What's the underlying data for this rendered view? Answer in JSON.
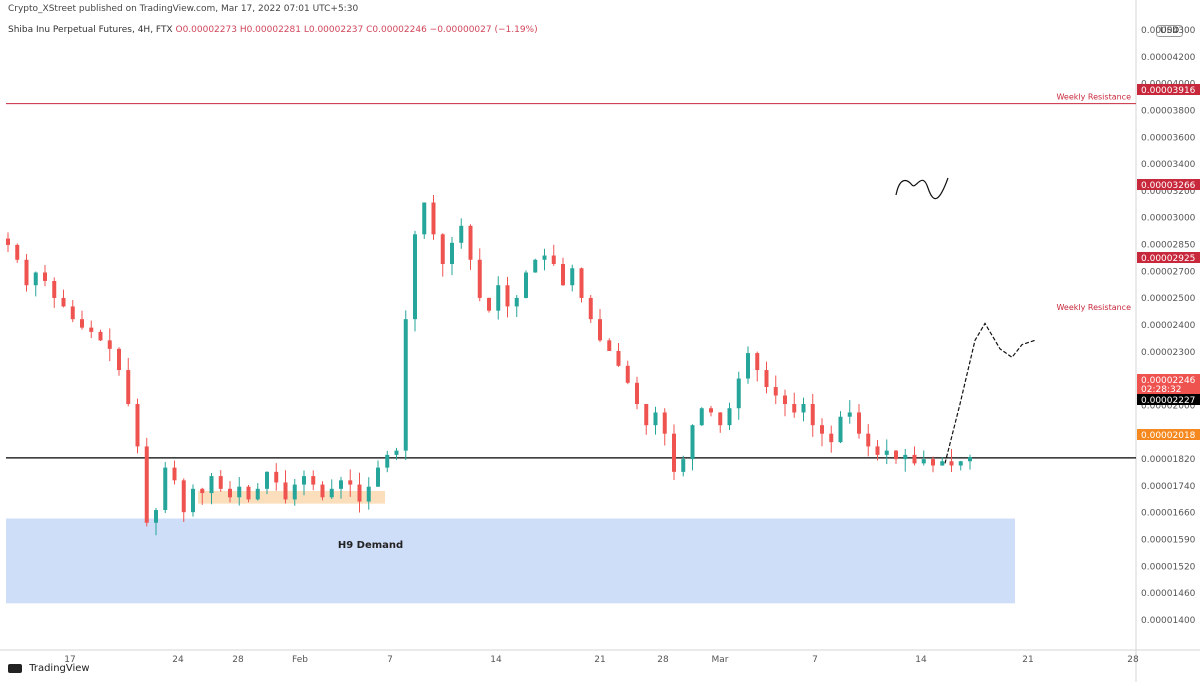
{
  "header": {
    "published_text": "Crypto_XStreet published on TradingView.com, Mar 17, 2022 07:01 UTC+5:30",
    "symbol": "Shiba Inu Perpetual Futures, 4H, FTX",
    "ohlc": "O0.00002273 H0.00002281 L0.00002237 C0.00002246 −0.00000027 (−1.19%)",
    "currency": "USD"
  },
  "footer": {
    "logo_text": "TradingView"
  },
  "colors": {
    "up": "#26a69a",
    "down": "#ef5350",
    "resistance": "#c8283c",
    "demand_zone": "#c9d9f7",
    "support_box": "#fbdcb5",
    "orange_label": "#f5891f",
    "black_label": "#000000"
  },
  "chart_data": {
    "type": "candlestick",
    "x_axis_ticks": [
      "17",
      "24",
      "28",
      "Feb",
      "7",
      "14",
      "21",
      "28",
      "Mar",
      "7",
      "14",
      "21",
      "28"
    ],
    "y_axis_ticks": [
      "0.00004300",
      "0.00004200",
      "0.00004000",
      "0.00003800",
      "0.00003600",
      "0.00003400",
      "0.00003200",
      "0.00003000",
      "0.00002850",
      "0.00002700",
      "0.00002500",
      "0.00002400",
      "0.00002300",
      "0.00002100",
      "0.00002000",
      "0.00001900",
      "0.00001820",
      "0.00001740",
      "0.00001660",
      "0.00001590",
      "0.00001520",
      "0.00001460",
      "0.00001400"
    ],
    "ylim": [
      1.34e-05,
      4.32e-05
    ],
    "price_labels": [
      {
        "text": "0.00003916",
        "kind": "resistance"
      },
      {
        "text": "0.00003266",
        "kind": "resistance"
      },
      {
        "text": "0.00002925",
        "kind": "resistance"
      },
      {
        "text": "0.00002246",
        "kind": "current",
        "countdown": "02:28:32"
      },
      {
        "text": "0.00002227",
        "kind": "black"
      },
      {
        "text": "0.00002018",
        "kind": "orange"
      }
    ],
    "levels": [
      {
        "label": "Weekly Resistance",
        "price": 3.916e-05
      },
      {
        "label": "Weekly Resistance",
        "price": 2.925e-05
      },
      {
        "label": "",
        "price": 2.246e-05
      }
    ],
    "zones": [
      {
        "label": "H9 Demand",
        "from": 1.56e-05,
        "to": 1.96e-05
      },
      {
        "label": "",
        "from": 2.03e-05,
        "to": 2.09e-05
      }
    ],
    "price_path": [
      3.25e-05,
      3.18e-05,
      3.06e-05,
      3.12e-05,
      3.08e-05,
      3e-05,
      2.96e-05,
      2.9e-05,
      2.86e-05,
      2.84e-05,
      2.8e-05,
      2.76e-05,
      2.66e-05,
      2.5e-05,
      2.3e-05,
      1.94e-05,
      2e-05,
      2.2e-05,
      2.14e-05,
      1.99e-05,
      2.1e-05,
      2.08e-05,
      2.16e-05,
      2.1e-05,
      2.06e-05,
      2.11e-05,
      2.05e-05,
      2.1e-05,
      2.18e-05,
      2.13e-05,
      2.05e-05,
      2.12e-05,
      2.16e-05,
      2.12e-05,
      2.06e-05,
      2.1e-05,
      2.14e-05,
      2.12e-05,
      2.04e-05,
      2.11e-05,
      2.2e-05,
      2.26e-05,
      2.28e-05,
      2.9e-05,
      3.3e-05,
      3.45e-05,
      3.3e-05,
      3.16e-05,
      3.26e-05,
      3.34e-05,
      3.18e-05,
      3e-05,
      2.94e-05,
      3.06e-05,
      2.96e-05,
      3e-05,
      3.12e-05,
      3.18e-05,
      3.2e-05,
      3.16e-05,
      3.06e-05,
      3.14e-05,
      3e-05,
      2.9e-05,
      2.8e-05,
      2.75e-05,
      2.68e-05,
      2.6e-05,
      2.5e-05,
      2.4e-05,
      2.46e-05,
      2.36e-05,
      2.18e-05,
      2.24e-05,
      2.4e-05,
      2.48e-05,
      2.46e-05,
      2.4e-05,
      2.48e-05,
      2.62e-05,
      2.74e-05,
      2.66e-05,
      2.58e-05,
      2.54e-05,
      2.5e-05,
      2.46e-05,
      2.5e-05,
      2.4e-05,
      2.36e-05,
      2.32e-05,
      2.44e-05,
      2.46e-05,
      2.36e-05,
      2.3e-05,
      2.26e-05,
      2.28e-05,
      2.24e-05,
      2.26e-05,
      2.22e-05,
      2.24e-05,
      2.21e-05,
      2.23e-05,
      2.21e-05,
      2.23e-05,
      2.25e-05
    ],
    "projection_path": [
      2.22e-05,
      2.5e-05,
      2.8e-05,
      2.88e-05,
      2.76e-05,
      2.72e-05,
      2.78e-05,
      2.8e-05
    ]
  }
}
